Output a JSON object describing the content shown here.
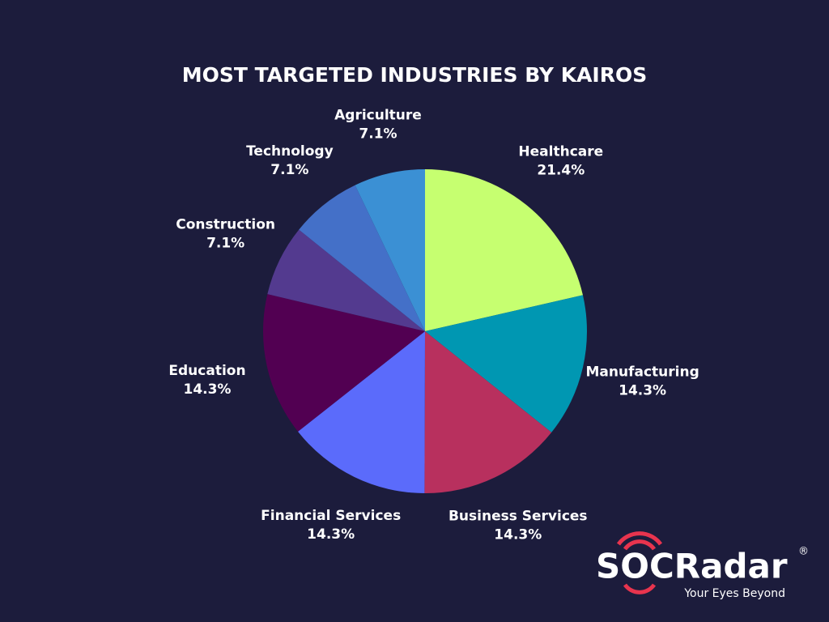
{
  "chart_data": {
    "type": "pie",
    "title": "MOST TARGETED INDUSTRIES BY KAIROS",
    "categories": [
      "Healthcare",
      "Manufacturing",
      "Business Services",
      "Financial Services",
      "Education",
      "Construction",
      "Technology",
      "Agriculture"
    ],
    "values": [
      21.4,
      14.3,
      14.3,
      14.3,
      14.3,
      7.1,
      7.1,
      7.1
    ],
    "value_labels": [
      "21.4%",
      "14.3%",
      "14.3%",
      "14.3%",
      "14.3%",
      "7.1%",
      "7.1%",
      "7.1%"
    ],
    "colors": [
      "#c6ff70",
      "#0097b2",
      "#b8305e",
      "#5b6bfb",
      "#520052",
      "#533a8f",
      "#4470c8",
      "#3b90d4"
    ]
  },
  "brand": {
    "name": "SOCRadar",
    "tagline": "Your Eyes Beyond",
    "registered": "®"
  }
}
